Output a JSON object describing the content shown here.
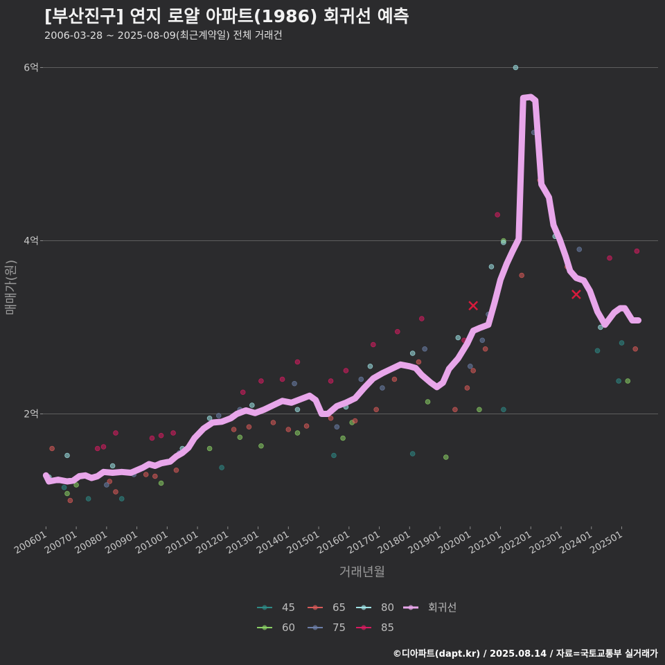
{
  "header": {
    "title": "[부산진구] 연지 로얄 아파트(1986) 회귀선 예측",
    "subtitle": "2006-03-28 ~ 2025-08-09(최근계약일) 전체 거래건"
  },
  "footer": {
    "credit": "©디아파트(dapt.kr) / 2025.08.14 / 자료=국토교통부 실거래가"
  },
  "colors": {
    "background": "#2b2b2d",
    "grid": "#5e5e5e",
    "regression": "#e8a6ea",
    "s45": "#2e8a86",
    "s60": "#8ad064",
    "s65": "#d85a58",
    "s75": "#6c7fa8",
    "s80": "#9fe3e6",
    "s85": "#d81b60",
    "cross": "#d81b3c"
  },
  "chart_data": {
    "type": "scatter",
    "title": "[부산진구] 연지 로얄 아파트(1986) 회귀선 예측",
    "xlabel": "거래년월",
    "ylabel": "매매가(원)",
    "xlim": [
      2005.9,
      2026.2
    ],
    "ylim": [
      0.7,
      6.3
    ],
    "y_unit": "억",
    "y_ticks": [
      {
        "v": 2,
        "label": "2억"
      },
      {
        "v": 4,
        "label": "4억"
      },
      {
        "v": 6,
        "label": "6억"
      }
    ],
    "x_ticks": [
      {
        "v": 2006,
        "label": "200601"
      },
      {
        "v": 2007,
        "label": "200701"
      },
      {
        "v": 2008,
        "label": "200801"
      },
      {
        "v": 2009,
        "label": "200901"
      },
      {
        "v": 2010,
        "label": "201001"
      },
      {
        "v": 2011,
        "label": "201101"
      },
      {
        "v": 2012,
        "label": "201201"
      },
      {
        "v": 2013,
        "label": "201301"
      },
      {
        "v": 2014,
        "label": "201401"
      },
      {
        "v": 2015,
        "label": "201501"
      },
      {
        "v": 2016,
        "label": "201601"
      },
      {
        "v": 2017,
        "label": "201701"
      },
      {
        "v": 2018,
        "label": "201801"
      },
      {
        "v": 2019,
        "label": "201901"
      },
      {
        "v": 2020,
        "label": "202001"
      },
      {
        "v": 2021,
        "label": "202101"
      },
      {
        "v": 2022,
        "label": "202201"
      },
      {
        "v": 2023,
        "label": "202301"
      },
      {
        "v": 2024,
        "label": "202401"
      },
      {
        "v": 2025,
        "label": "202501"
      }
    ],
    "legend": [
      {
        "key": "45",
        "label": "45",
        "color": "#2e8a86"
      },
      {
        "key": "65",
        "label": "65",
        "color": "#d85a58"
      },
      {
        "key": "80",
        "label": "80",
        "color": "#9fe3e6"
      },
      {
        "key": "reg",
        "label": "회귀선",
        "color": "#e8a6ea"
      },
      {
        "key": "60",
        "label": "60",
        "color": "#8ad064"
      },
      {
        "key": "75",
        "label": "75",
        "color": "#6c7fa8"
      },
      {
        "key": "85",
        "label": "85",
        "color": "#d81b60"
      }
    ],
    "regression": [
      [
        2006.0,
        1.29
      ],
      [
        2006.1,
        1.22
      ],
      [
        2006.4,
        1.24
      ],
      [
        2006.7,
        1.22
      ],
      [
        2006.9,
        1.23
      ],
      [
        2007.1,
        1.28
      ],
      [
        2007.3,
        1.29
      ],
      [
        2007.5,
        1.26
      ],
      [
        2007.7,
        1.28
      ],
      [
        2007.9,
        1.33
      ],
      [
        2008.2,
        1.32
      ],
      [
        2008.5,
        1.33
      ],
      [
        2008.8,
        1.32
      ],
      [
        2009.0,
        1.35
      ],
      [
        2009.2,
        1.38
      ],
      [
        2009.4,
        1.42
      ],
      [
        2009.6,
        1.4
      ],
      [
        2009.8,
        1.43
      ],
      [
        2010.1,
        1.45
      ],
      [
        2010.3,
        1.51
      ],
      [
        2010.5,
        1.55
      ],
      [
        2010.7,
        1.61
      ],
      [
        2010.9,
        1.72
      ],
      [
        2011.2,
        1.83
      ],
      [
        2011.5,
        1.9
      ],
      [
        2011.8,
        1.91
      ],
      [
        2012.1,
        1.95
      ],
      [
        2012.3,
        2.0
      ],
      [
        2012.6,
        2.04
      ],
      [
        2012.9,
        2.01
      ],
      [
        2013.2,
        2.05
      ],
      [
        2013.5,
        2.1
      ],
      [
        2013.8,
        2.15
      ],
      [
        2014.1,
        2.13
      ],
      [
        2014.4,
        2.17
      ],
      [
        2014.7,
        2.21
      ],
      [
        2014.9,
        2.16
      ],
      [
        2015.1,
        2.0
      ],
      [
        2015.3,
        2.0
      ],
      [
        2015.6,
        2.09
      ],
      [
        2015.9,
        2.13
      ],
      [
        2016.2,
        2.18
      ],
      [
        2016.5,
        2.3
      ],
      [
        2016.8,
        2.41
      ],
      [
        2017.1,
        2.47
      ],
      [
        2017.4,
        2.52
      ],
      [
        2017.7,
        2.57
      ],
      [
        2018.0,
        2.55
      ],
      [
        2018.2,
        2.53
      ],
      [
        2018.4,
        2.45
      ],
      [
        2018.7,
        2.36
      ],
      [
        2018.9,
        2.31
      ],
      [
        2019.1,
        2.36
      ],
      [
        2019.3,
        2.52
      ],
      [
        2019.6,
        2.64
      ],
      [
        2019.9,
        2.81
      ],
      [
        2020.1,
        2.96
      ],
      [
        2020.3,
        2.99
      ],
      [
        2020.6,
        3.03
      ],
      [
        2020.8,
        3.28
      ],
      [
        2021.0,
        3.55
      ],
      [
        2021.2,
        3.73
      ],
      [
        2021.4,
        3.88
      ],
      [
        2021.6,
        4.02
      ],
      [
        2021.75,
        5.65
      ],
      [
        2022.0,
        5.66
      ],
      [
        2022.15,
        5.62
      ],
      [
        2022.35,
        4.65
      ],
      [
        2022.6,
        4.5
      ],
      [
        2022.75,
        4.18
      ],
      [
        2022.95,
        4.02
      ],
      [
        2023.15,
        3.82
      ],
      [
        2023.3,
        3.65
      ],
      [
        2023.5,
        3.57
      ],
      [
        2023.75,
        3.54
      ],
      [
        2023.95,
        3.42
      ],
      [
        2024.2,
        3.18
      ],
      [
        2024.45,
        3.03
      ],
      [
        2024.75,
        3.17
      ],
      [
        2024.95,
        3.22
      ],
      [
        2025.1,
        3.22
      ],
      [
        2025.35,
        3.08
      ],
      [
        2025.55,
        3.08
      ]
    ],
    "crosses": [
      [
        2020.1,
        3.25
      ],
      [
        2023.5,
        3.38
      ]
    ],
    "points": {
      "45": [
        [
          2006.6,
          1.15
        ],
        [
          2007.4,
          1.02
        ],
        [
          2008.5,
          1.02
        ],
        [
          2011.8,
          1.38
        ],
        [
          2015.5,
          1.52
        ],
        [
          2018.1,
          1.54
        ],
        [
          2021.1,
          2.05
        ],
        [
          2024.2,
          2.73
        ],
        [
          2025.0,
          2.82
        ],
        [
          2024.9,
          2.38
        ]
      ],
      "60": [
        [
          2006.7,
          1.08
        ],
        [
          2007.0,
          1.18
        ],
        [
          2009.8,
          1.2
        ],
        [
          2011.4,
          1.6
        ],
        [
          2012.4,
          1.73
        ],
        [
          2013.1,
          1.63
        ],
        [
          2014.3,
          1.78
        ],
        [
          2015.8,
          1.72
        ],
        [
          2016.1,
          1.9
        ],
        [
          2018.6,
          2.14
        ],
        [
          2019.2,
          1.5
        ],
        [
          2020.3,
          2.05
        ],
        [
          2021.1,
          4.0
        ],
        [
          2025.2,
          2.38
        ]
      ],
      "65": [
        [
          2006.2,
          1.6
        ],
        [
          2006.8,
          1.0
        ],
        [
          2008.1,
          1.22
        ],
        [
          2008.3,
          1.1
        ],
        [
          2009.3,
          1.3
        ],
        [
          2009.6,
          1.28
        ],
        [
          2010.3,
          1.35
        ],
        [
          2012.2,
          1.82
        ],
        [
          2012.7,
          1.85
        ],
        [
          2013.5,
          1.9
        ],
        [
          2014.0,
          1.82
        ],
        [
          2014.6,
          1.86
        ],
        [
          2015.4,
          1.95
        ],
        [
          2016.2,
          1.92
        ],
        [
          2016.9,
          2.05
        ],
        [
          2017.5,
          2.4
        ],
        [
          2018.3,
          2.6
        ],
        [
          2019.5,
          2.05
        ],
        [
          2019.9,
          2.3
        ],
        [
          2020.1,
          2.5
        ],
        [
          2020.5,
          2.75
        ],
        [
          2021.7,
          3.6
        ],
        [
          2022.3,
          4.7
        ],
        [
          2023.2,
          3.7
        ],
        [
          2025.45,
          2.75
        ]
      ],
      "75": [
        [
          2008.0,
          1.18
        ],
        [
          2008.9,
          1.3
        ],
        [
          2010.4,
          1.55
        ],
        [
          2011.7,
          1.98
        ],
        [
          2012.4,
          2.05
        ],
        [
          2014.2,
          2.35
        ],
        [
          2015.6,
          1.85
        ],
        [
          2016.4,
          2.4
        ],
        [
          2017.1,
          2.3
        ],
        [
          2018.5,
          2.75
        ],
        [
          2020.0,
          2.55
        ],
        [
          2020.4,
          2.85
        ],
        [
          2020.6,
          3.15
        ],
        [
          2022.1,
          5.25
        ],
        [
          2023.6,
          3.9
        ]
      ],
      "80": [
        [
          2006.1,
          1.27
        ],
        [
          2006.7,
          1.52
        ],
        [
          2008.2,
          1.4
        ],
        [
          2009.4,
          1.42
        ],
        [
          2010.5,
          1.6
        ],
        [
          2011.4,
          1.95
        ],
        [
          2012.8,
          2.1
        ],
        [
          2014.3,
          2.05
        ],
        [
          2015.9,
          2.08
        ],
        [
          2016.7,
          2.55
        ],
        [
          2018.1,
          2.7
        ],
        [
          2019.6,
          2.88
        ],
        [
          2020.7,
          3.7
        ],
        [
          2021.1,
          3.98
        ],
        [
          2021.5,
          6.0
        ],
        [
          2022.8,
          4.05
        ],
        [
          2024.3,
          3.0
        ]
      ],
      "85": [
        [
          2007.7,
          1.6
        ],
        [
          2007.9,
          1.62
        ],
        [
          2008.3,
          1.78
        ],
        [
          2009.5,
          1.72
        ],
        [
          2009.8,
          1.75
        ],
        [
          2010.2,
          1.78
        ],
        [
          2012.5,
          2.25
        ],
        [
          2013.1,
          2.38
        ],
        [
          2013.8,
          2.4
        ],
        [
          2014.3,
          2.6
        ],
        [
          2015.4,
          2.38
        ],
        [
          2015.9,
          2.5
        ],
        [
          2016.8,
          2.8
        ],
        [
          2017.6,
          2.95
        ],
        [
          2018.4,
          3.1
        ],
        [
          2019.8,
          2.85
        ],
        [
          2020.9,
          4.3
        ],
        [
          2024.6,
          3.8
        ],
        [
          2025.5,
          3.88
        ]
      ]
    }
  }
}
